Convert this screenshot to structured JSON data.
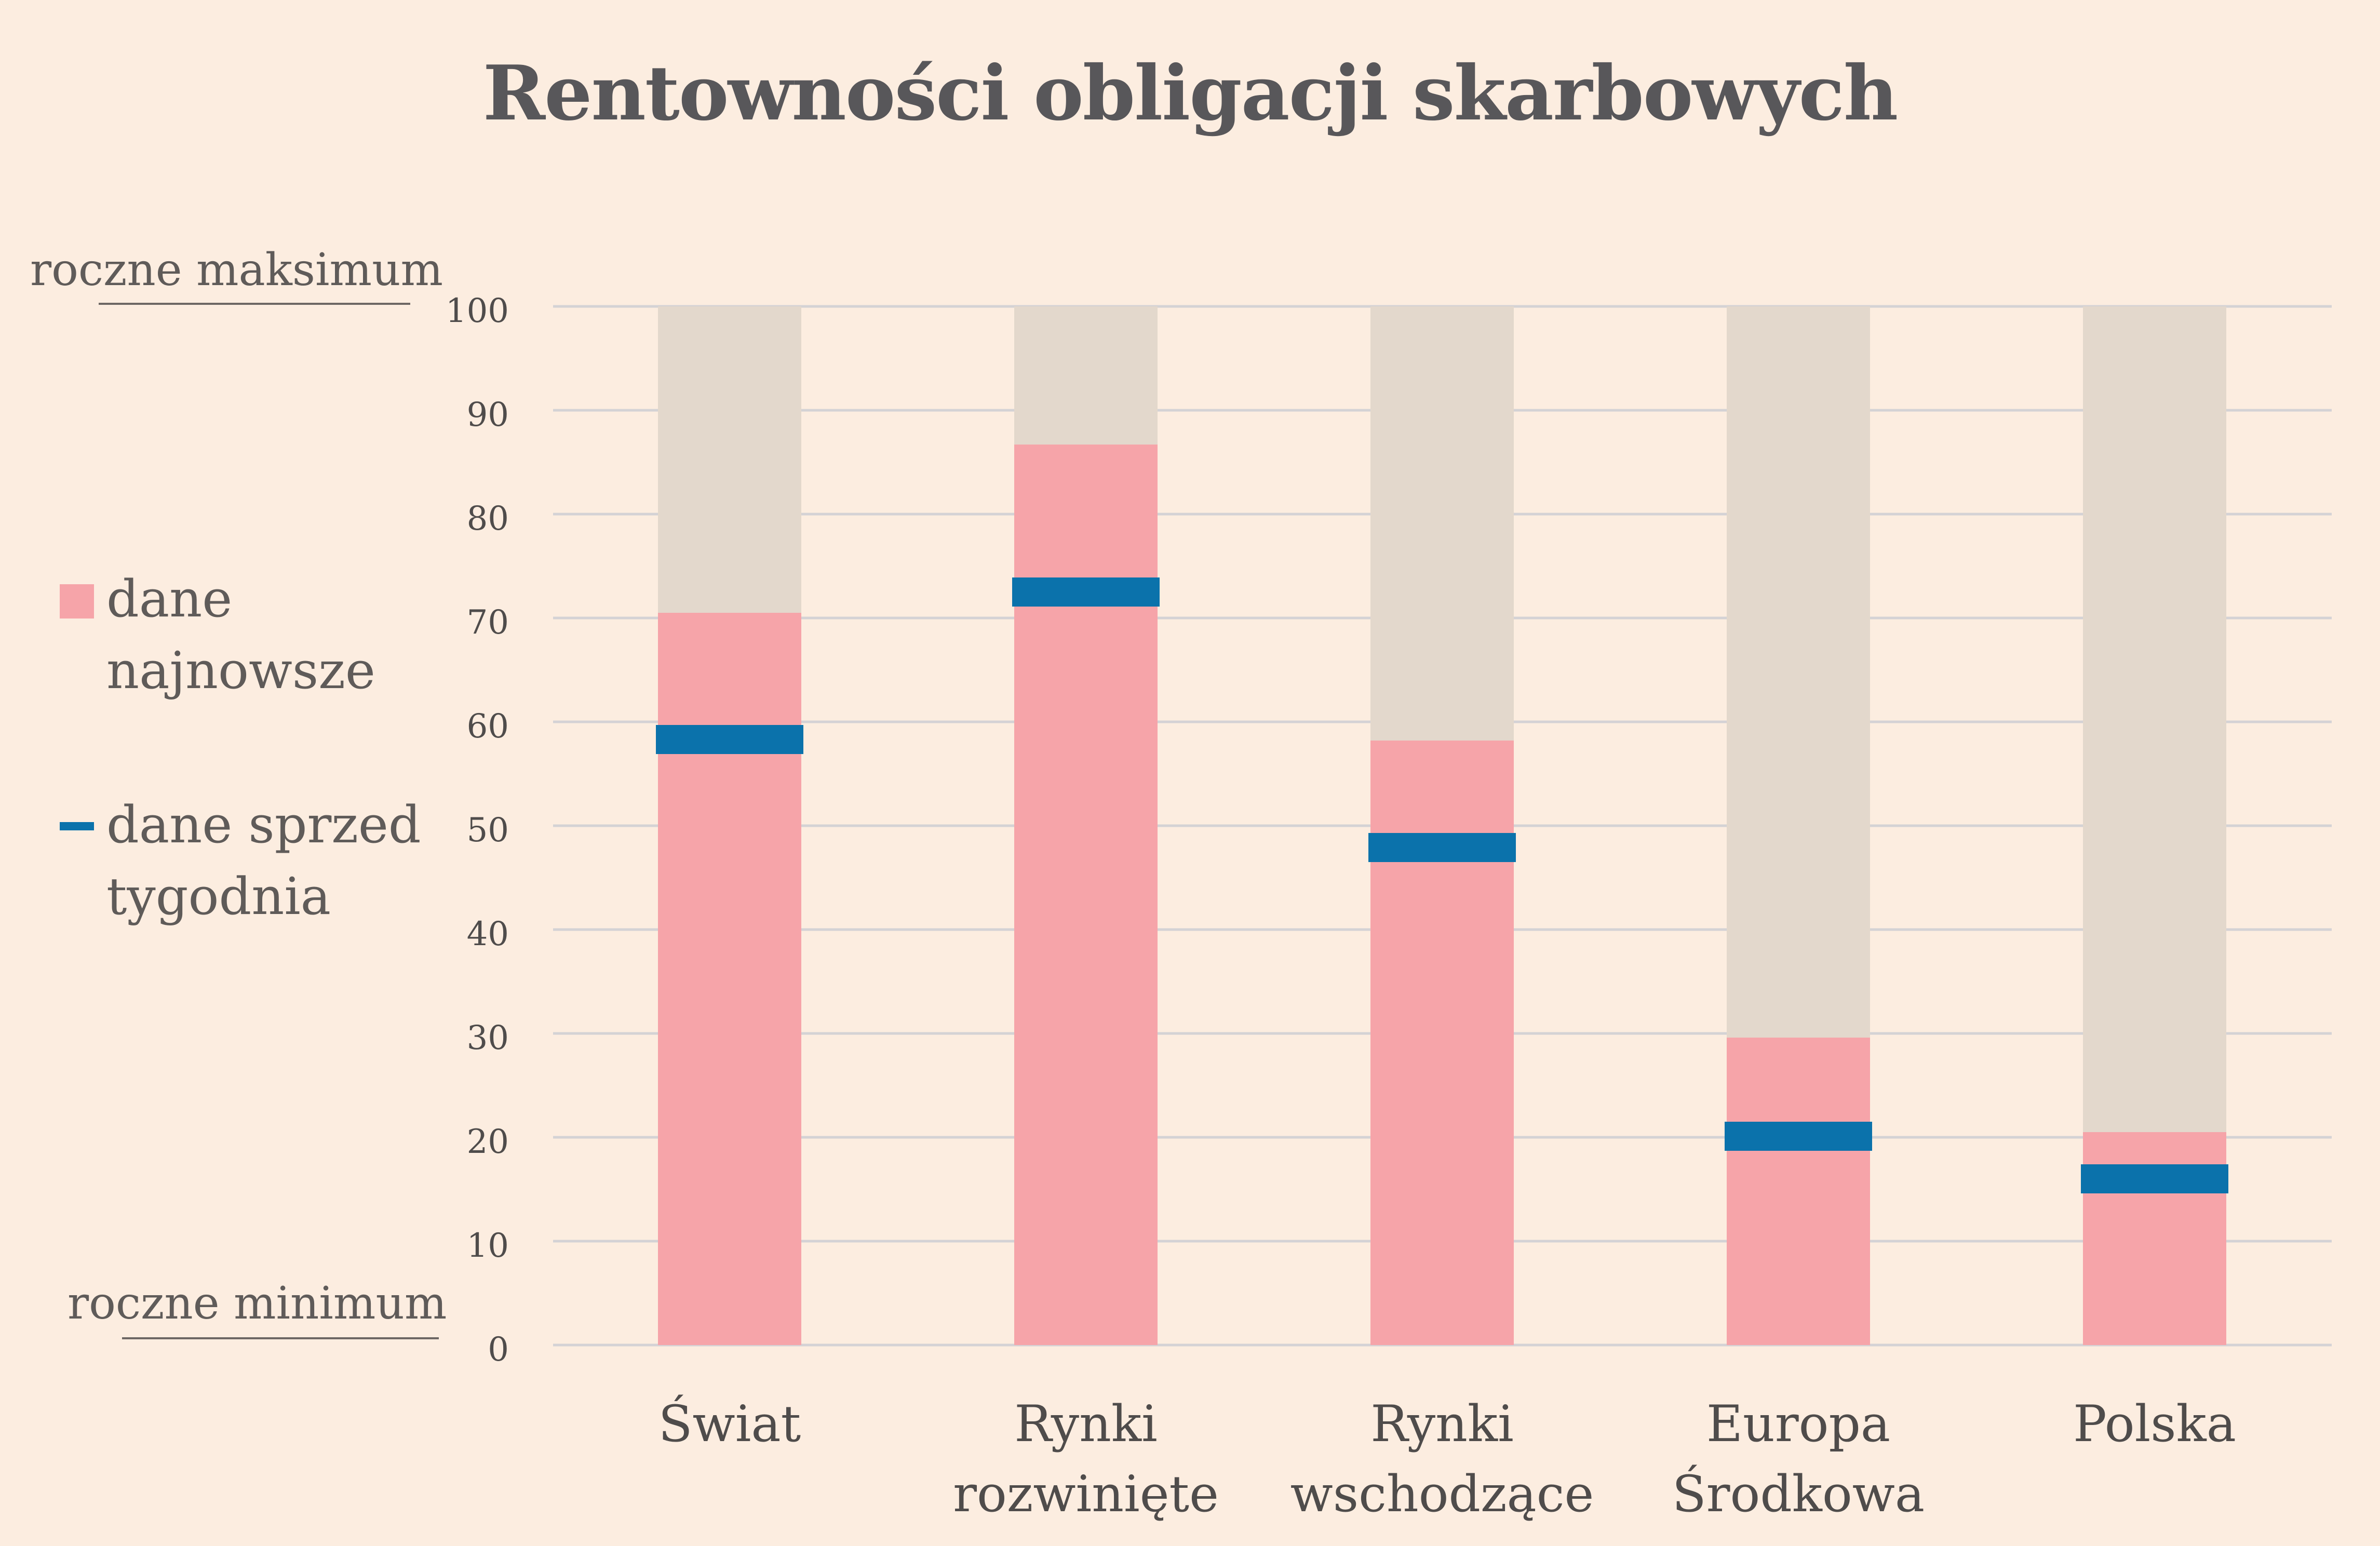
{
  "title": "Rentowności obligacji skarbowych",
  "side_labels": {
    "max": "roczne maksimum",
    "min": "roczne minimum"
  },
  "legend": {
    "latest": {
      "label_line1": "dane",
      "label_line2": "najnowsze",
      "color": "#f6a4a9"
    },
    "week_ago": {
      "label_line1": "dane sprzed",
      "label_line2": "tygodnia",
      "color": "#0b72ab"
    }
  },
  "colors": {
    "background": "#fcede0",
    "range": "#e3d8cc",
    "latest": "#f6a4a9",
    "week_ago": "#0b72ab",
    "grid": "#d4d2d5"
  },
  "chart_data": {
    "type": "bar",
    "categories": [
      [
        "Świat"
      ],
      [
        "Rynki",
        "rozwinięte"
      ],
      [
        "Rynki",
        "wschodzące"
      ],
      [
        "Europa",
        "Środkowa"
      ],
      [
        "Polska"
      ]
    ],
    "series": [
      {
        "name": "dane najnowsze",
        "values": [
          70.5,
          86.7,
          58.2,
          29.6,
          20.5
        ]
      },
      {
        "name": "dane sprzed tygodnia",
        "values": [
          58.3,
          72.5,
          47.9,
          20.1,
          16.0
        ]
      }
    ],
    "range": [
      0,
      100
    ],
    "ylim": [
      0,
      100
    ],
    "yticks": [
      0,
      10,
      20,
      30,
      40,
      50,
      60,
      70,
      80,
      90,
      100
    ],
    "grid": true
  }
}
